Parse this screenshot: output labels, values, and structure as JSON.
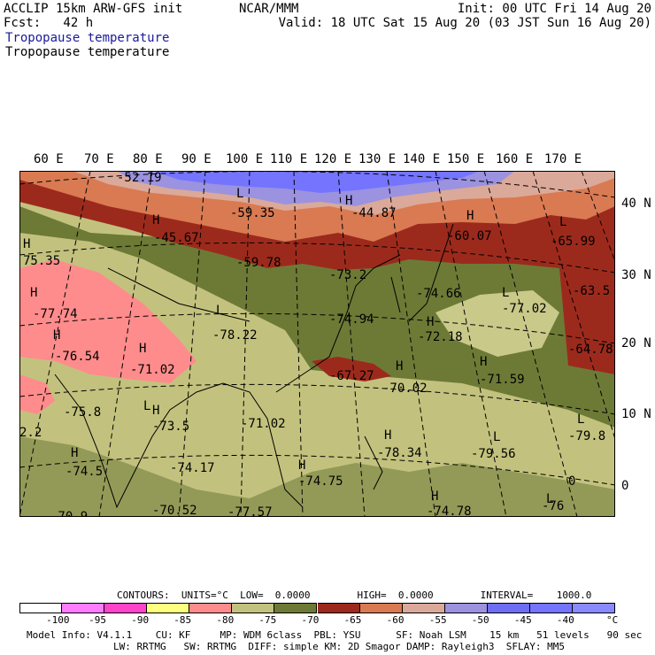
{
  "header": {
    "model": "ACCLIP 15km ARW-GFS init",
    "forecast": "Fcst:   42 h",
    "center": "NCAR/MMM",
    "init": "Init: 00 UTC Fri 14 Aug 20",
    "valid": "Valid: 18 UTC Sat 15 Aug 20 (03 JST Sun 16 Aug 20)",
    "field_title_1": "Tropopause temperature",
    "field_title_2": "Tropopause temperature"
  },
  "map": {
    "lon_labels": [
      "60 E",
      "70 E",
      "80 E",
      "90 E",
      "100 E",
      "110 E",
      "120 E",
      "130 E",
      "140 E",
      "150 E",
      "160 E",
      "170 E"
    ],
    "lat_labels": [
      "40 N",
      "30 N",
      "20 N",
      "10 N",
      "0"
    ],
    "extrema": [
      {
        "text": "-52.19"
      },
      {
        "text": "L"
      },
      {
        "text": "-59.35"
      },
      {
        "text": "H"
      },
      {
        "text": "-44.87"
      },
      {
        "text": "H"
      },
      {
        "text": "-45.67"
      },
      {
        "text": "-59.78"
      },
      {
        "text": "H"
      },
      {
        "text": "-60.07"
      },
      {
        "text": "L"
      },
      {
        "text": "-65.99"
      },
      {
        "text": "H"
      },
      {
        "text": "75.35"
      },
      {
        "text": "-63.5"
      },
      {
        "text": "-73.2"
      },
      {
        "text": "-74.66"
      },
      {
        "text": "L"
      },
      {
        "text": "-77.02"
      },
      {
        "text": "H"
      },
      {
        "text": "-77.74"
      },
      {
        "text": "L"
      },
      {
        "text": "-78.22"
      },
      {
        "text": "-74.94"
      },
      {
        "text": "H"
      },
      {
        "text": "-72.18"
      },
      {
        "text": "H"
      },
      {
        "text": "-76.54"
      },
      {
        "text": "-64.78"
      },
      {
        "text": "H"
      },
      {
        "text": "-71.02"
      },
      {
        "text": "-67.27"
      },
      {
        "text": "H"
      },
      {
        "text": "-70.02"
      },
      {
        "text": "H"
      },
      {
        "text": "-71.59"
      },
      {
        "text": "L"
      },
      {
        "text": "-75.8"
      },
      {
        "text": "H"
      },
      {
        "text": "-73.5"
      },
      {
        "text": "-71.02"
      },
      {
        "text": "L"
      },
      {
        "text": "-79.8"
      },
      {
        "text": "2.2"
      },
      {
        "text": "H"
      },
      {
        "text": "-78.34"
      },
      {
        "text": "L"
      },
      {
        "text": "-79.56"
      },
      {
        "text": "H"
      },
      {
        "text": "-74.5"
      },
      {
        "text": "-74.17"
      },
      {
        "text": "H"
      },
      {
        "text": "-74.75"
      },
      {
        "text": "0"
      },
      {
        "text": "H"
      },
      {
        "text": "-74.78"
      },
      {
        "text": "L"
      },
      {
        "text": "-76"
      },
      {
        "text": "-70.52"
      },
      {
        "text": "-77.57"
      },
      {
        "text": "-70.9"
      }
    ]
  },
  "legend": {
    "contours_line": "CONTOURS:  UNITS=°C  LOW=  0.0000        HIGH=  0.0000        INTERVAL=    1000.0",
    "colors": [
      "#ffffff",
      "#ff7cff",
      "#ff44cc",
      "#ffff80",
      "#ff8c8c",
      "#c2c27e",
      "#6d7a36",
      "#9c2a1c",
      "#d97a52",
      "#dba999",
      "#9b92e0",
      "#6e6ef5",
      "#7474ff",
      "#8a8aff"
    ],
    "ticks": [
      "-100",
      "-95",
      "-90",
      "-85",
      "-80",
      "-75",
      "-70",
      "-65",
      "-60",
      "-55",
      "-50",
      "-45",
      "-40",
      "°C"
    ]
  },
  "footer": {
    "line1": "Model Info: V4.1.1    CU: KF     MP: WDM 6class  PBL: YSU      SF: Noah LSM    15 km   51 levels   90 sec",
    "line2": "LW: RRTMG   SW: RRTMG  DIFF: simple KM: 2D Smagor DAMP: Rayleigh3  SFLAY: MM5"
  }
}
